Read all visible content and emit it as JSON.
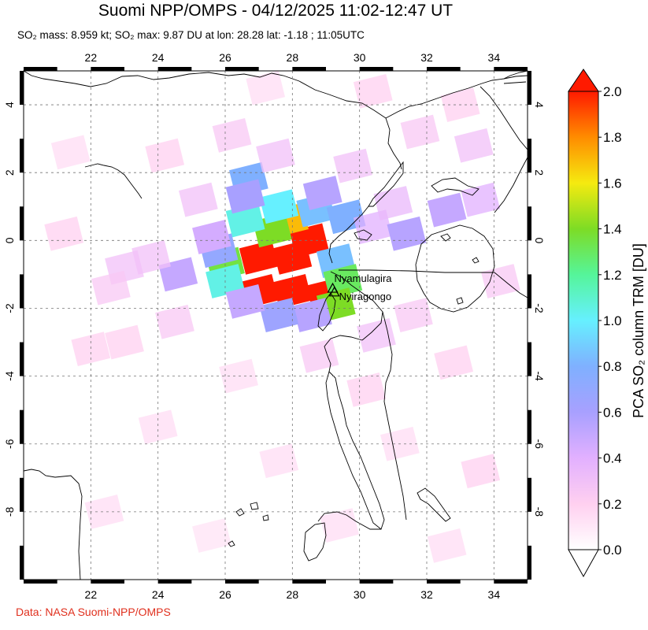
{
  "title": "Suomi NPP/OMPS - 04/12/2025 11:02-12:47 UT",
  "subtitle": "SO₂ mass: 8.959 kt; SO₂ max: 9.87 DU at lon: 28.28 lat: -1.18 ; 11:05UTC",
  "credit": "Data: NASA Suomi-NPP/OMPS",
  "map": {
    "lon_range": [
      20,
      35
    ],
    "lat_range": [
      -10,
      5
    ],
    "lon_ticks": [
      22,
      24,
      26,
      28,
      30,
      32,
      34
    ],
    "lat_ticks": [
      4,
      2,
      0,
      -2,
      -4,
      -6,
      -8
    ],
    "grid": true,
    "volcanoes": [
      {
        "name": "Nyamulagira",
        "lon": 29.2,
        "lat": -1.41
      },
      {
        "name": "Nyiragongo",
        "lon": 29.25,
        "lat": -1.52
      }
    ]
  },
  "colorbar": {
    "label": "PCA SO₂ column TRM [DU]",
    "min": 0.0,
    "max": 2.0,
    "ticks": [
      "0.0",
      "0.2",
      "0.4",
      "0.6",
      "0.8",
      "1.0",
      "1.2",
      "1.4",
      "1.6",
      "1.8",
      "2.0"
    ],
    "colors": [
      "#ffffff",
      "#ffd0f0",
      "#e2b0ff",
      "#a8a0ff",
      "#7fb0ff",
      "#66f0ff",
      "#55f59a",
      "#7ddc25",
      "#f5ea10",
      "#ff8c00",
      "#ff1a00"
    ]
  },
  "so2_cells": [
    {
      "lon": 27.0,
      "lat": -0.5,
      "v": 2.0
    },
    {
      "lon": 28.0,
      "lat": -0.5,
      "v": 2.0
    },
    {
      "lon": 27.0,
      "lat": -1.5,
      "v": 2.0
    },
    {
      "lon": 28.0,
      "lat": -1.5,
      "v": 2.0
    },
    {
      "lon": 28.5,
      "lat": 0.0,
      "v": 2.0
    },
    {
      "lon": 29.0,
      "lat": -1.6,
      "v": 2.0
    },
    {
      "lon": 27.9,
      "lat": 0.6,
      "v": 1.7
    },
    {
      "lon": 27.4,
      "lat": 0.3,
      "v": 1.4
    },
    {
      "lon": 26.6,
      "lat": 0.6,
      "v": 1.05
    },
    {
      "lon": 27.6,
      "lat": 1.0,
      "v": 1.0
    },
    {
      "lon": 26.0,
      "lat": -0.7,
      "v": 1.35
    },
    {
      "lon": 26.0,
      "lat": -1.2,
      "v": 1.05
    },
    {
      "lon": 25.8,
      "lat": -0.3,
      "v": 0.7
    },
    {
      "lon": 26.7,
      "lat": 1.8,
      "v": 0.8
    },
    {
      "lon": 26.6,
      "lat": 1.3,
      "v": 0.6
    },
    {
      "lon": 28.7,
      "lat": 0.9,
      "v": 0.85
    },
    {
      "lon": 29.6,
      "lat": 0.7,
      "v": 0.8
    },
    {
      "lon": 29.3,
      "lat": -0.6,
      "v": 0.85
    },
    {
      "lon": 29.5,
      "lat": -1.2,
      "v": 1.3
    },
    {
      "lon": 29.3,
      "lat": -1.9,
      "v": 1.4
    },
    {
      "lon": 28.6,
      "lat": -2.2,
      "v": 0.55
    },
    {
      "lon": 27.6,
      "lat": -2.2,
      "v": 0.65
    },
    {
      "lon": 26.6,
      "lat": -1.8,
      "v": 0.5
    },
    {
      "lon": 24.6,
      "lat": -1.0,
      "v": 0.5
    },
    {
      "lon": 25.6,
      "lat": 0.1,
      "v": 0.45
    },
    {
      "lon": 28.9,
      "lat": 1.4,
      "v": 0.55
    },
    {
      "lon": 30.4,
      "lat": 0.4,
      "v": 0.4
    },
    {
      "lon": 31.4,
      "lat": 0.2,
      "v": 0.55
    },
    {
      "lon": 32.6,
      "lat": 0.9,
      "v": 0.5
    },
    {
      "lon": 33.6,
      "lat": 1.2,
      "v": 0.4
    },
    {
      "lon": 31.0,
      "lat": 1.1,
      "v": 0.35
    },
    {
      "lon": 23.8,
      "lat": -0.5,
      "v": 0.3
    },
    {
      "lon": 23.0,
      "lat": -0.8,
      "v": 0.3
    },
    {
      "lon": 22.6,
      "lat": -1.4,
      "v": 0.25
    },
    {
      "lon": 22.0,
      "lat": -3.2,
      "v": 0.2
    },
    {
      "lon": 23.0,
      "lat": -3.0,
      "v": 0.2
    },
    {
      "lon": 24.5,
      "lat": -2.4,
      "v": 0.25
    },
    {
      "lon": 25.2,
      "lat": 1.2,
      "v": 0.3
    },
    {
      "lon": 24.2,
      "lat": 2.5,
      "v": 0.2
    },
    {
      "lon": 26.2,
      "lat": 3.1,
      "v": 0.25
    },
    {
      "lon": 27.5,
      "lat": 2.5,
      "v": 0.3
    },
    {
      "lon": 29.8,
      "lat": 2.2,
      "v": 0.3
    },
    {
      "lon": 31.8,
      "lat": 3.2,
      "v": 0.25
    },
    {
      "lon": 33.4,
      "lat": 2.8,
      "v": 0.3
    },
    {
      "lon": 33.0,
      "lat": 4.0,
      "v": 0.2
    },
    {
      "lon": 30.4,
      "lat": 4.4,
      "v": 0.2
    },
    {
      "lon": 27.2,
      "lat": 4.5,
      "v": 0.15
    },
    {
      "lon": 30.5,
      "lat": -2.8,
      "v": 0.3
    },
    {
      "lon": 31.6,
      "lat": -2.2,
      "v": 0.25
    },
    {
      "lon": 32.8,
      "lat": -3.6,
      "v": 0.2
    },
    {
      "lon": 30.2,
      "lat": -4.4,
      "v": 0.2
    },
    {
      "lon": 28.8,
      "lat": -3.4,
      "v": 0.25
    },
    {
      "lon": 26.4,
      "lat": -4.0,
      "v": 0.15
    },
    {
      "lon": 24.0,
      "lat": -5.5,
      "v": 0.15
    },
    {
      "lon": 27.6,
      "lat": -6.5,
      "v": 0.15
    },
    {
      "lon": 31.2,
      "lat": -6.0,
      "v": 0.15
    },
    {
      "lon": 33.6,
      "lat": -6.8,
      "v": 0.2
    },
    {
      "lon": 22.4,
      "lat": -8.0,
      "v": 0.15
    },
    {
      "lon": 25.6,
      "lat": -8.7,
      "v": 0.12
    },
    {
      "lon": 29.4,
      "lat": -8.4,
      "v": 0.15
    },
    {
      "lon": 32.6,
      "lat": -9.0,
      "v": 0.15
    },
    {
      "lon": 34.2,
      "lat": -1.2,
      "v": 0.25
    },
    {
      "lon": 21.2,
      "lat": 0.2,
      "v": 0.2
    },
    {
      "lon": 21.4,
      "lat": 2.6,
      "v": 0.15
    }
  ]
}
